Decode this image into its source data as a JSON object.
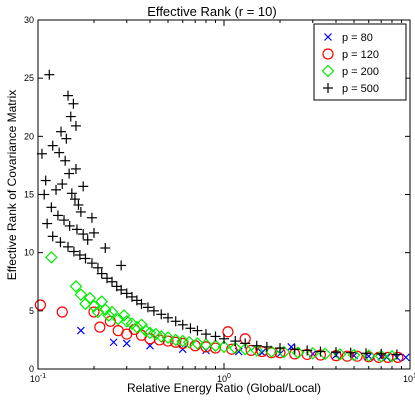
{
  "chart_data": {
    "type": "scatter",
    "title": "Effective Rank (r = 10)",
    "xlabel": "Relative Energy Ratio (Global/Local)",
    "ylabel": "Effective Rank of Covariance Matrix",
    "xscale": "log",
    "xlim": [
      0.1,
      10
    ],
    "ylim": [
      0,
      30
    ],
    "xtick_labels": [
      {
        "base": "10",
        "exp": "-1",
        "value": 0.1
      },
      {
        "base": "10",
        "exp": "0",
        "value": 1
      },
      {
        "base": "10",
        "exp": "1",
        "value": 10
      }
    ],
    "yticks": [
      0,
      5,
      10,
      15,
      20,
      25,
      30
    ],
    "grid": false,
    "legend_position": "top-right",
    "series": [
      {
        "name": "p = 80",
        "marker": "x",
        "color": "#0000ff",
        "points": [
          [
            0.17,
            3.3
          ],
          [
            0.255,
            2.3
          ],
          [
            0.3,
            2.2
          ],
          [
            0.4,
            2.0
          ],
          [
            0.6,
            1.7
          ],
          [
            0.8,
            1.6
          ],
          [
            1.2,
            1.5
          ],
          [
            1.6,
            1.4
          ],
          [
            2.0,
            1.3
          ],
          [
            2.3,
            1.9
          ],
          [
            3.0,
            1.3
          ],
          [
            4.0,
            1.2
          ],
          [
            5.0,
            1.15
          ],
          [
            6.0,
            1.1
          ],
          [
            7.0,
            1.05
          ],
          [
            7.5,
            1.0
          ],
          [
            8.5,
            1.0
          ],
          [
            9.5,
            1.0
          ]
        ]
      },
      {
        "name": "p = 120",
        "marker": "o",
        "color": "#ff0000",
        "points": [
          [
            0.103,
            5.5
          ],
          [
            0.135,
            4.9
          ],
          [
            0.2,
            4.9
          ],
          [
            0.215,
            3.6
          ],
          [
            0.245,
            4.1
          ],
          [
            0.27,
            3.3
          ],
          [
            0.3,
            3.0
          ],
          [
            0.33,
            3.4
          ],
          [
            0.36,
            2.9
          ],
          [
            0.4,
            2.6
          ],
          [
            0.45,
            2.5
          ],
          [
            0.5,
            2.4
          ],
          [
            0.55,
            2.3
          ],
          [
            0.6,
            2.2
          ],
          [
            0.7,
            2.0
          ],
          [
            0.8,
            1.9
          ],
          [
            0.9,
            1.8
          ],
          [
            1.05,
            3.2
          ],
          [
            1.1,
            1.7
          ],
          [
            1.3,
            2.6
          ],
          [
            1.4,
            1.6
          ],
          [
            1.6,
            1.5
          ],
          [
            1.8,
            1.4
          ],
          [
            2.0,
            1.4
          ],
          [
            2.4,
            1.3
          ],
          [
            2.8,
            1.25
          ],
          [
            3.3,
            1.2
          ],
          [
            4.0,
            1.15
          ],
          [
            4.6,
            1.1
          ],
          [
            5.2,
            1.1
          ],
          [
            6.0,
            1.05
          ],
          [
            6.8,
            1.0
          ],
          [
            7.6,
            1.0
          ],
          [
            8.6,
            1.0
          ]
        ]
      },
      {
        "name": "p = 200",
        "marker": "diamond",
        "color": "#00ee00",
        "points": [
          [
            0.118,
            9.6
          ],
          [
            0.16,
            7.1
          ],
          [
            0.17,
            6.4
          ],
          [
            0.18,
            5.6
          ],
          [
            0.19,
            6.1
          ],
          [
            0.2,
            5.4
          ],
          [
            0.21,
            4.9
          ],
          [
            0.22,
            5.8
          ],
          [
            0.23,
            5.1
          ],
          [
            0.24,
            4.6
          ],
          [
            0.25,
            4.9
          ],
          [
            0.27,
            4.3
          ],
          [
            0.29,
            4.6
          ],
          [
            0.3,
            4.1
          ],
          [
            0.32,
            3.9
          ],
          [
            0.34,
            3.6
          ],
          [
            0.36,
            3.8
          ],
          [
            0.38,
            3.3
          ],
          [
            0.4,
            3.1
          ],
          [
            0.43,
            3.0
          ],
          [
            0.46,
            2.8
          ],
          [
            0.5,
            2.7
          ],
          [
            0.55,
            2.5
          ],
          [
            0.6,
            2.4
          ],
          [
            0.65,
            2.3
          ],
          [
            0.72,
            2.2
          ],
          [
            0.8,
            2.1
          ],
          [
            0.9,
            2.0
          ],
          [
            1.0,
            1.9
          ],
          [
            1.15,
            1.8
          ],
          [
            1.3,
            1.7
          ],
          [
            1.5,
            1.6
          ],
          [
            1.8,
            1.5
          ],
          [
            2.1,
            1.45
          ],
          [
            2.5,
            1.4
          ],
          [
            3.0,
            1.35
          ],
          [
            3.5,
            1.3
          ],
          [
            4.2,
            1.25
          ],
          [
            5.0,
            1.2
          ],
          [
            6.0,
            1.15
          ],
          [
            7.0,
            1.1
          ],
          [
            8.0,
            1.1
          ]
        ]
      },
      {
        "name": "p = 500",
        "marker": "+",
        "color": "#000000",
        "points": [
          [
            0.115,
            25.3
          ],
          [
            0.145,
            23.5
          ],
          [
            0.15,
            21.7
          ],
          [
            0.155,
            22.8
          ],
          [
            0.16,
            20.9
          ],
          [
            0.12,
            19.2
          ],
          [
            0.13,
            18.6
          ],
          [
            0.14,
            17.9
          ],
          [
            0.142,
            19.8
          ],
          [
            0.147,
            16.8
          ],
          [
            0.11,
            16.2
          ],
          [
            0.125,
            15.4
          ],
          [
            0.135,
            15.9
          ],
          [
            0.152,
            15.1
          ],
          [
            0.158,
            14.6
          ],
          [
            0.165,
            14.1
          ],
          [
            0.17,
            13.5
          ],
          [
            0.118,
            13.9
          ],
          [
            0.128,
            13.2
          ],
          [
            0.138,
            12.8
          ],
          [
            0.148,
            12.3
          ],
          [
            0.162,
            12.0
          ],
          [
            0.175,
            11.6
          ],
          [
            0.185,
            11.1
          ],
          [
            0.12,
            11.4
          ],
          [
            0.132,
            10.9
          ],
          [
            0.145,
            10.5
          ],
          [
            0.156,
            10.1
          ],
          [
            0.168,
            9.8
          ],
          [
            0.18,
            9.5
          ],
          [
            0.195,
            9.1
          ],
          [
            0.21,
            8.7
          ],
          [
            0.22,
            8.2
          ],
          [
            0.235,
            7.8
          ],
          [
            0.25,
            7.5
          ],
          [
            0.265,
            7.1
          ],
          [
            0.28,
            6.8
          ],
          [
            0.3,
            6.5
          ],
          [
            0.32,
            6.2
          ],
          [
            0.34,
            5.9
          ],
          [
            0.36,
            5.6
          ],
          [
            0.39,
            5.3
          ],
          [
            0.42,
            5.0
          ],
          [
            0.46,
            4.7
          ],
          [
            0.5,
            4.4
          ],
          [
            0.55,
            4.1
          ],
          [
            0.6,
            3.8
          ],
          [
            0.66,
            3.5
          ],
          [
            0.72,
            3.3
          ],
          [
            0.8,
            3.0
          ],
          [
            0.9,
            2.8
          ],
          [
            1.0,
            2.6
          ],
          [
            1.15,
            2.4
          ],
          [
            1.3,
            2.2
          ],
          [
            1.5,
            2.0
          ],
          [
            1.7,
            1.9
          ],
          [
            2.0,
            1.8
          ],
          [
            2.4,
            1.7
          ],
          [
            2.8,
            1.6
          ],
          [
            3.3,
            1.5
          ],
          [
            4.0,
            1.45
          ],
          [
            4.8,
            1.4
          ],
          [
            5.8,
            1.35
          ],
          [
            7.0,
            1.3
          ],
          [
            8.5,
            1.25
          ],
          [
            0.2,
            11.7
          ],
          [
            0.28,
            8.9
          ],
          [
            0.23,
            10.4
          ],
          [
            0.195,
            13.0
          ],
          [
            0.175,
            15.7
          ],
          [
            0.16,
            17.2
          ],
          [
            0.133,
            20.4
          ],
          [
            0.105,
            18.5
          ],
          [
            0.108,
            15.0
          ],
          [
            0.112,
            12.5
          ]
        ]
      }
    ]
  }
}
